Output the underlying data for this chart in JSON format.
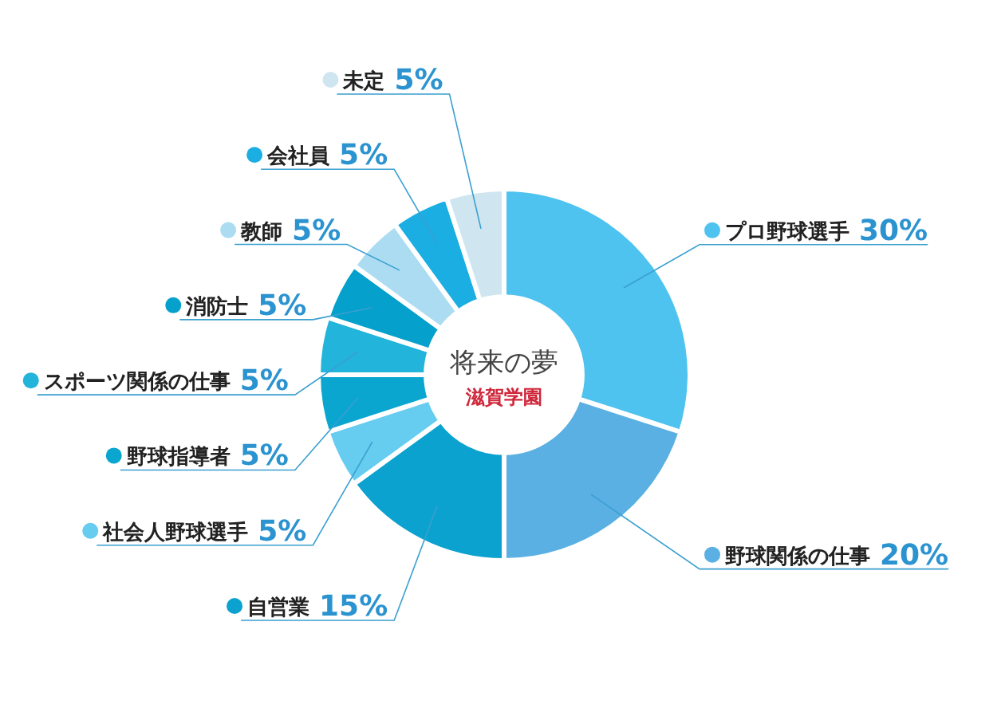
{
  "chart_data": {
    "type": "donut",
    "title": "将来の夢",
    "subtitle": "滋賀学園",
    "categories": [
      "プロ野球選手",
      "野球関係の仕事",
      "自営業",
      "社会人野球選手",
      "野球指導者",
      "スポーツ関係の仕事",
      "消防士",
      "教師",
      "会社員",
      "未定"
    ],
    "values": [
      30,
      20,
      15,
      5,
      5,
      5,
      5,
      5,
      5,
      5
    ],
    "value_labels": [
      "30%",
      "20%",
      "15%",
      "5%",
      "5%",
      "5%",
      "5%",
      "5%",
      "5%",
      "5%"
    ],
    "colors": [
      "#4fc3ef",
      "#5ab0e2",
      "#0ca2cf",
      "#66cdf0",
      "#0aa6d0",
      "#22b4db",
      "#05a0cb",
      "#abdcf2",
      "#1aaee2",
      "#cfe6f0"
    ],
    "legend": "left"
  }
}
